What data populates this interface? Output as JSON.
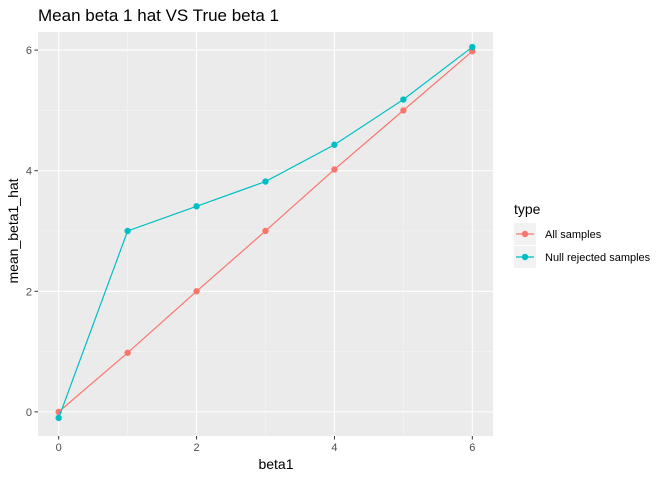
{
  "chart_data": {
    "type": "line",
    "title": "Mean beta 1 hat VS True beta 1",
    "xlabel": "beta1",
    "ylabel": "mean_beta1_hat",
    "xlim": [
      -0.3,
      6.3
    ],
    "ylim": [
      -0.4,
      6.3
    ],
    "x_ticks": [
      0,
      2,
      4,
      6
    ],
    "y_ticks": [
      0,
      2,
      4,
      6
    ],
    "x_tick_labels": [
      "0",
      "2",
      "4",
      "6"
    ],
    "y_tick_labels": [
      "0",
      "2",
      "4",
      "6"
    ],
    "grid": true,
    "legend": {
      "title": "type",
      "position": "right"
    },
    "x": [
      0,
      1,
      2,
      3,
      4,
      5,
      6
    ],
    "series": [
      {
        "name": "All samples",
        "color": "#F8766D",
        "values": [
          0.0,
          0.98,
          2.0,
          3.0,
          4.02,
          5.0,
          5.98
        ]
      },
      {
        "name": "Null rejected samples",
        "color": "#00BFC4",
        "values": [
          -0.1,
          3.0,
          3.41,
          3.82,
          4.43,
          5.18,
          6.05
        ]
      }
    ]
  }
}
